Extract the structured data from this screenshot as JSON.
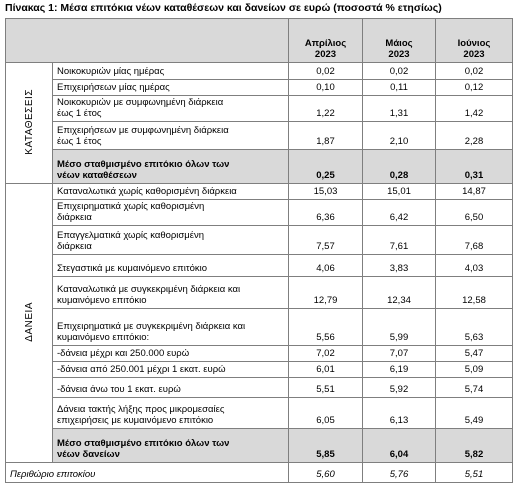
{
  "title": "Πίνακας 1: Μέσα επιτόκια νέων καταθέσεων και δανείων σε ευρώ (ποσοστά % ετησίως)",
  "header": {
    "columns": [
      "Απρίλιος\n2023",
      "Μάιος\n2023",
      "Ιούνιος\n2023"
    ]
  },
  "sections": [
    {
      "label": "ΚΑΤΑΘΕΣΕΙΣ",
      "rows": [
        {
          "label": "Νοικοκυριών μίας ημέρας",
          "values": [
            "0,02",
            "0,02",
            "0,02"
          ]
        },
        {
          "label": "Επιχειρήσεων μίας ημέρας",
          "values": [
            "0,10",
            "0,11",
            "0,12"
          ]
        },
        {
          "label": "Νοικοκυριών με συμφωνημένη διάρκεια\nέως 1 έτος",
          "values": [
            "1,22",
            "1,31",
            "1,42"
          ]
        },
        {
          "label": "Επιχειρήσεων με συμφωνημένη διάρκεια\nέως 1 έτος",
          "values": [
            "1,87",
            "2,10",
            "2,28"
          ]
        },
        {
          "label": "Μέσο σταθμισμένο επιτόκιο όλων των\nνέων καταθέσεων",
          "values": [
            "0,25",
            "0,28",
            "0,31"
          ]
        }
      ]
    },
    {
      "label": "ΔΑΝΕΙΑ",
      "rows": [
        {
          "label": "Καταναλωτικά χωρίς καθορισμένη διάρκεια",
          "values": [
            "15,03",
            "15,01",
            "14,87"
          ]
        },
        {
          "label": "Επιχειρηματικά χωρίς καθορισμένη\nδιάρκεια",
          "values": [
            "6,36",
            "6,42",
            "6,50"
          ]
        },
        {
          "label": "Επαγγελματικά χωρίς καθορισμένη\nδιάρκεια",
          "values": [
            "7,57",
            "7,61",
            "7,68"
          ]
        },
        {
          "label": "Στεγαστικά με κυμαινόμενο επιτόκιο",
          "values": [
            "4,06",
            "3,83",
            "4,03"
          ]
        },
        {
          "label": "Καταναλωτικά με συγκεκριμένη διάρκεια και\nκυμαινόμενο επιτόκιο",
          "values": [
            "12,79",
            "12,34",
            "12,58"
          ]
        },
        {
          "label": "Επιχειρηματικά με συγκεκριμένη διάρκεια και\nκυμαινόμενο επιτόκιο:",
          "values": [
            "5,56",
            "5,99",
            "5,63"
          ]
        },
        {
          "label": " -δάνεια μέχρι και 250.000 ευρώ",
          "values": [
            "7,02",
            "7,07",
            "5,47"
          ]
        },
        {
          "label": " -δάνεια από 250.001 μέχρι 1 εκατ. ευρώ",
          "values": [
            "6,01",
            "6,19",
            "5,09"
          ]
        },
        {
          "label": " -δάνεια άνω του 1 εκατ. ευρώ",
          "values": [
            "5,51",
            "5,92",
            "5,74"
          ]
        },
        {
          "label": "Δάνεια τακτής λήξης προς μικρομεσαίες\nεπιχειρήσεις με κυμαινόμενο επιτόκιο",
          "values": [
            "6,05",
            "6,13",
            "5,49"
          ]
        },
        {
          "label": "Μέσο σταθμισμένο επιτόκιο όλων των\nνέων δανείων",
          "values": [
            "5,85",
            "6,04",
            "5,82"
          ]
        }
      ]
    }
  ],
  "footer": {
    "label": "Περιθώριο επιτοκίου",
    "values": [
      "5,60",
      "5,76",
      "5,51"
    ]
  }
}
